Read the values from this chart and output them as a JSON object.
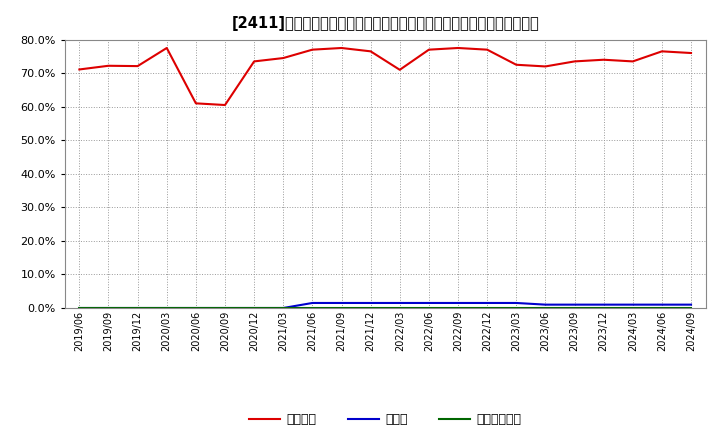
{
  "title": "[2411]　自己資本、のれん、繰延税金資産の総資産に対する比率の推移",
  "x_labels": [
    "2019/06",
    "2019/09",
    "2019/12",
    "2020/03",
    "2020/06",
    "2020/09",
    "2020/12",
    "2021/03",
    "2021/06",
    "2021/09",
    "2021/12",
    "2022/03",
    "2022/06",
    "2022/09",
    "2022/12",
    "2023/03",
    "2023/06",
    "2023/09",
    "2023/12",
    "2024/03",
    "2024/06",
    "2024/09"
  ],
  "equity_ratio": [
    71.1,
    72.2,
    72.1,
    77.5,
    61.0,
    60.5,
    73.5,
    74.5,
    77.0,
    77.5,
    76.5,
    71.0,
    77.0,
    77.5,
    77.0,
    72.5,
    72.0,
    73.5,
    74.0,
    73.5,
    76.5,
    76.0
  ],
  "goodwill_ratio": [
    0.0,
    0.0,
    0.0,
    0.0,
    0.0,
    0.0,
    0.0,
    0.0,
    1.5,
    1.5,
    1.5,
    1.5,
    1.5,
    1.5,
    1.5,
    1.5,
    1.0,
    1.0,
    1.0,
    1.0,
    1.0,
    1.0
  ],
  "deferred_tax_ratio": [
    0.0,
    0.0,
    0.0,
    0.0,
    0.0,
    0.0,
    0.0,
    0.0,
    0.0,
    0.0,
    0.0,
    0.0,
    0.0,
    0.0,
    0.0,
    0.0,
    0.0,
    0.0,
    0.0,
    0.0,
    0.0,
    0.0
  ],
  "equity_color": "#DD0000",
  "goodwill_color": "#0000CC",
  "deferred_tax_color": "#006600",
  "background_color": "#FFFFFF",
  "plot_bg_color": "#FFFFFF",
  "grid_color": "#999999",
  "ylim": [
    0.0,
    80.0
  ],
  "yticks": [
    0.0,
    10.0,
    20.0,
    30.0,
    40.0,
    50.0,
    60.0,
    70.0,
    80.0
  ],
  "legend_labels": [
    "自己資本",
    "のれん",
    "繰延税金資産"
  ]
}
